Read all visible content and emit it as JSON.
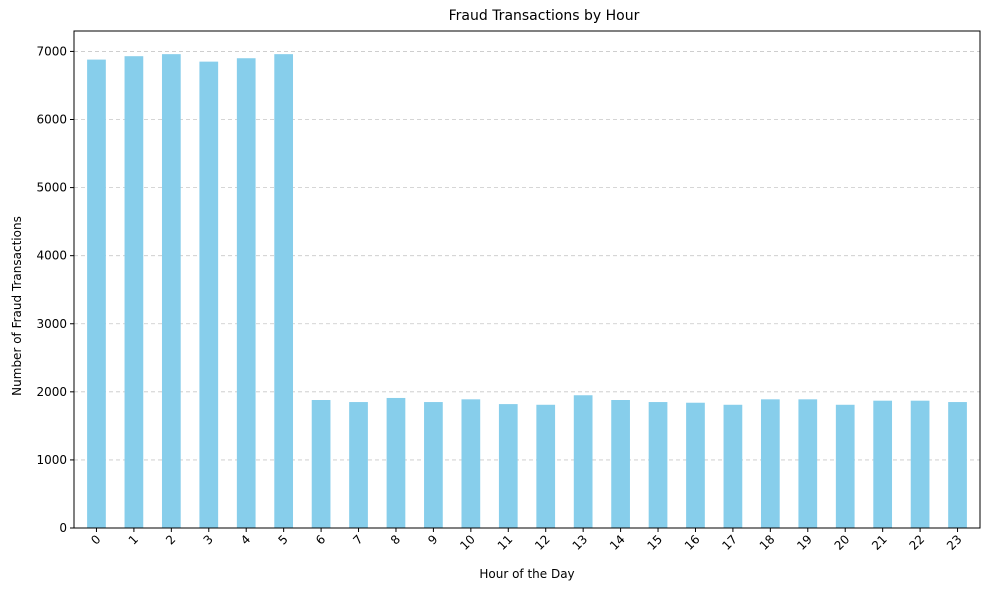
{
  "chart_data": {
    "type": "bar",
    "title": "Fraud Transactions by Hour",
    "xlabel": "Hour of the Day",
    "ylabel": "Number of Fraud Transactions",
    "categories": [
      "0",
      "1",
      "2",
      "3",
      "4",
      "5",
      "6",
      "7",
      "8",
      "9",
      "10",
      "11",
      "12",
      "13",
      "14",
      "15",
      "16",
      "17",
      "18",
      "19",
      "20",
      "21",
      "22",
      "23"
    ],
    "values": [
      6880,
      6930,
      6960,
      6850,
      6900,
      6960,
      1880,
      1850,
      1910,
      1850,
      1890,
      1820,
      1810,
      1950,
      1880,
      1850,
      1840,
      1810,
      1890,
      1890,
      1810,
      1870,
      1870,
      1850
    ],
    "ylim": [
      0,
      7300
    ],
    "yticks": [
      0,
      1000,
      2000,
      3000,
      4000,
      5000,
      6000,
      7000
    ],
    "grid": "horizontal dashed",
    "bar_color": "#87ceeb",
    "grid_color": "#c8c8c8",
    "x_tick_rotation": "45"
  }
}
